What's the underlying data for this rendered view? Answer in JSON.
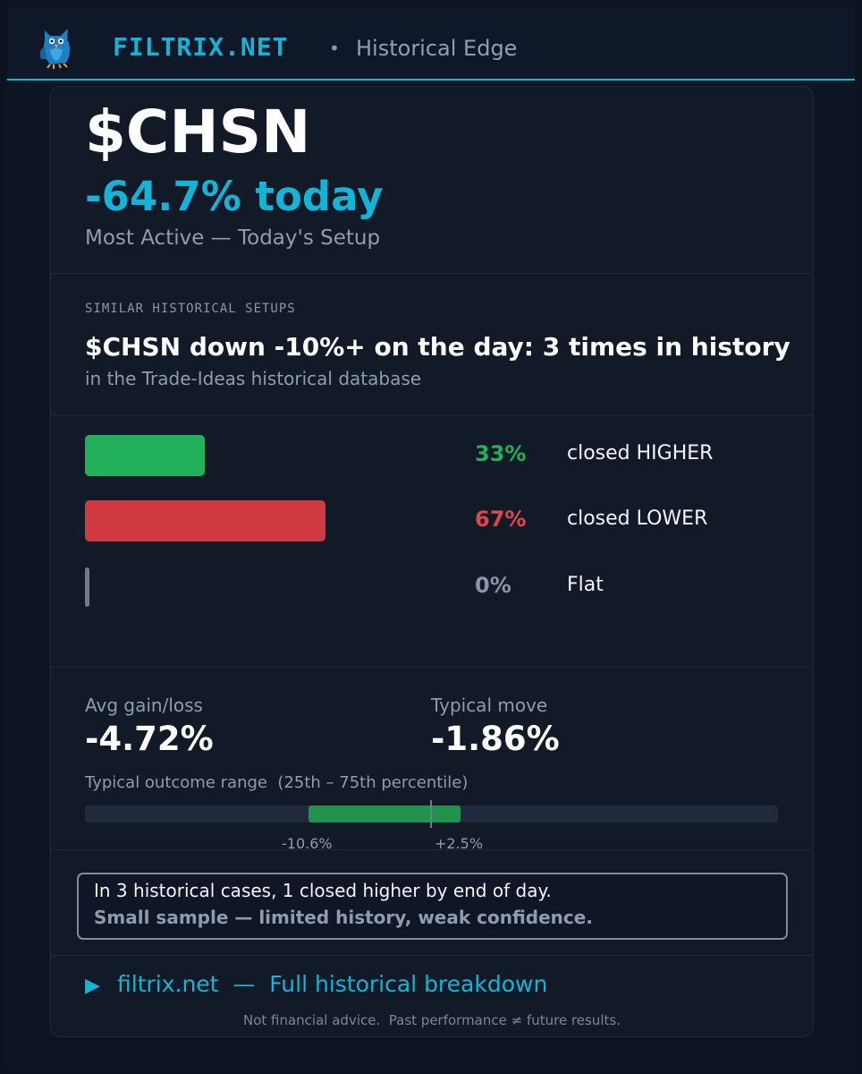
{
  "header": {
    "brand": "FILTRIX.NET",
    "separator": "•",
    "subtitle": "Historical Edge",
    "logo_icon": "owl-logo-icon"
  },
  "hero": {
    "ticker": "$CHSN",
    "change": "-64.7% today",
    "setup": "Most Active — Today's Setup"
  },
  "similar": {
    "section_label": "SIMILAR HISTORICAL SETUPS",
    "headline": "$CHSN down -10%+ on the day: 3 times in history",
    "subline": "in the Trade-Ideas historical database"
  },
  "outcomes": [
    {
      "pct": "33%",
      "label": "closed HIGHER",
      "fraction": 0.33,
      "color": "#22b05a"
    },
    {
      "pct": "67%",
      "label": "closed LOWER",
      "fraction": 0.67,
      "color": "#e0474c"
    },
    {
      "pct": "0%",
      "label": "Flat",
      "fraction": 0.0,
      "color": "#8a97aa"
    }
  ],
  "stats": {
    "avg_label": "Avg gain/loss",
    "avg_value": "-4.72%",
    "typical_label": "Typical move",
    "typical_value": "-1.86%"
  },
  "range": {
    "label": "Typical outcome range  (25th – 75th percentile)",
    "low_label": "-10.6%",
    "high_label": "+2.5%"
  },
  "summary": {
    "line1": "In 3 historical cases, 1 closed higher by end of day.",
    "line2": "Small sample — limited history, weak confidence."
  },
  "footer": {
    "cta_arrow": "▶",
    "cta_text": "filtrix.net  —  Full historical breakdown",
    "disclaimer": "Not financial advice.  Past performance ≠ future results."
  },
  "colors": {
    "accent": "#13b4d6",
    "positive": "#22b05a",
    "negative": "#e0474c",
    "neutral": "#8a97aa"
  }
}
